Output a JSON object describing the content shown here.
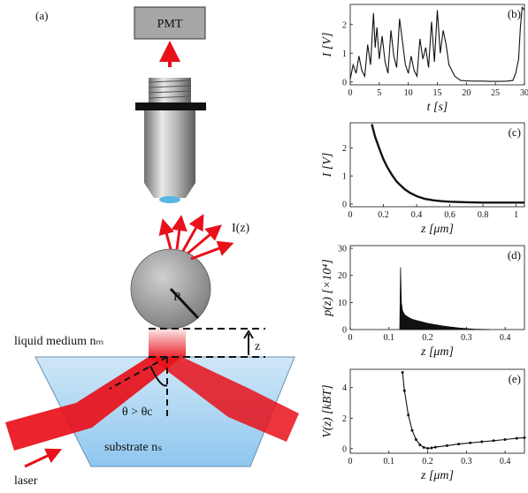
{
  "schematic": {
    "panel_label": "(a)",
    "detector_label": "PMT",
    "emission_label": "I(z)",
    "radius_label": "R",
    "medium_label": "liquid medium nₘ",
    "distance_label": "z",
    "angle_label": "θ > θc",
    "substrate_label": "substrate nₛ",
    "laser_label": "laser",
    "colors": {
      "beam": "#e8101a",
      "sphere": "#9a9a9a",
      "substrate": "#a9d4f2",
      "detector": "#a6a6a6"
    }
  },
  "chart_data": [
    {
      "id": "b",
      "type": "line",
      "panel_label": "(b)",
      "xlabel": "t [s]",
      "ylabel": "I [V]",
      "xlim": [
        0,
        30
      ],
      "ylim": [
        -0.1,
        2.7
      ],
      "xticks": [
        "0",
        "5",
        "10",
        "15",
        "20",
        "25",
        "30"
      ],
      "yticks": [
        "0",
        "1",
        "2"
      ],
      "series": [
        {
          "x": [
            0,
            0.5,
            1,
            1.5,
            2,
            2.5,
            3,
            3.5,
            4,
            4.3,
            4.6,
            5,
            5.5,
            6,
            6.5,
            7,
            7.5,
            8,
            8.5,
            9,
            9.5,
            10,
            10.5,
            11,
            11.5,
            12,
            12.5,
            13,
            13.5,
            14,
            14.5,
            15,
            15.5,
            16,
            16.5,
            17,
            17.5,
            18,
            19,
            20,
            21,
            22,
            23,
            24,
            25,
            26,
            27,
            28,
            28.5,
            29,
            29.3,
            29.6,
            30
          ],
          "y": [
            0.1,
            0.6,
            0.3,
            0.9,
            0.4,
            0.2,
            1.3,
            0.6,
            2.4,
            1.2,
            1.9,
            0.8,
            1.6,
            0.7,
            0.3,
            1.8,
            0.9,
            0.5,
            2.2,
            1.4,
            0.6,
            0.3,
            0.9,
            0.4,
            0.2,
            1.5,
            0.8,
            1.2,
            0.5,
            2.1,
            0.7,
            2.5,
            1.0,
            1.8,
            1.3,
            0.6,
            0.4,
            0.2,
            0.05,
            0.04,
            0.03,
            0.03,
            0.03,
            0.02,
            0.02,
            0.02,
            0.03,
            0.05,
            0.3,
            0.8,
            1.9,
            2.6,
            2.5
          ]
        }
      ]
    },
    {
      "id": "c",
      "type": "line",
      "panel_label": "(c)",
      "xlabel": "z [μm]",
      "ylabel": "I [V]",
      "xlim": [
        0,
        1.05
      ],
      "ylim": [
        -0.1,
        2.9
      ],
      "xticks": [
        "0",
        "0.2",
        "0.4",
        "0.6",
        "0.8",
        "1"
      ],
      "yticks": [
        "0",
        "1",
        "2"
      ],
      "series": [
        {
          "x": [
            0.13,
            0.15,
            0.18,
            0.2,
            0.22,
            0.25,
            0.28,
            0.3,
            0.33,
            0.36,
            0.4,
            0.45,
            0.5,
            0.55,
            0.6,
            0.7,
            0.8,
            0.9,
            1.0,
            1.05
          ],
          "y": [
            2.85,
            2.4,
            1.9,
            1.6,
            1.35,
            1.05,
            0.8,
            0.68,
            0.52,
            0.4,
            0.28,
            0.18,
            0.13,
            0.1,
            0.08,
            0.06,
            0.05,
            0.05,
            0.05,
            0.05
          ]
        }
      ]
    },
    {
      "id": "d",
      "type": "area",
      "panel_label": "(d)",
      "xlabel": "z [μm]",
      "ylabel": "p(z) [×10⁴]",
      "xlim": [
        0,
        0.45
      ],
      "ylim": [
        0,
        31
      ],
      "xticks": [
        "0",
        "0.1",
        "0.2",
        "0.3",
        "0.4"
      ],
      "yticks": [
        "0",
        "10",
        "20",
        "30"
      ],
      "series": [
        {
          "x": [
            0.128,
            0.13,
            0.132,
            0.135,
            0.14,
            0.15,
            0.16,
            0.18,
            0.2,
            0.22,
            0.24,
            0.26,
            0.28,
            0.3,
            0.32,
            0.34,
            0.36
          ],
          "y": [
            0,
            23,
            10,
            7,
            5.5,
            4.5,
            3.8,
            3.0,
            2.3,
            1.8,
            1.3,
            0.9,
            0.6,
            0.35,
            0.15,
            0.05,
            0
          ]
        }
      ]
    },
    {
      "id": "e",
      "type": "line",
      "panel_label": "(e)",
      "xlabel": "z [μm]",
      "ylabel": "V(z) [kBT]",
      "xlim": [
        0,
        0.45
      ],
      "ylim": [
        -0.3,
        5.2
      ],
      "xticks": [
        "0",
        "0.1",
        "0.2",
        "0.3",
        "0.4"
      ],
      "yticks": [
        "0",
        "2",
        "4"
      ],
      "series": [
        {
          "x": [
            0.135,
            0.14,
            0.15,
            0.16,
            0.17,
            0.18,
            0.19,
            0.2,
            0.21,
            0.22,
            0.25,
            0.28,
            0.31,
            0.34,
            0.37,
            0.4,
            0.43,
            0.45
          ],
          "y": [
            5.0,
            3.8,
            2.2,
            1.2,
            0.6,
            0.25,
            0.08,
            0.02,
            0.05,
            0.1,
            0.2,
            0.3,
            0.38,
            0.45,
            0.52,
            0.6,
            0.68,
            0.72
          ]
        }
      ]
    }
  ]
}
